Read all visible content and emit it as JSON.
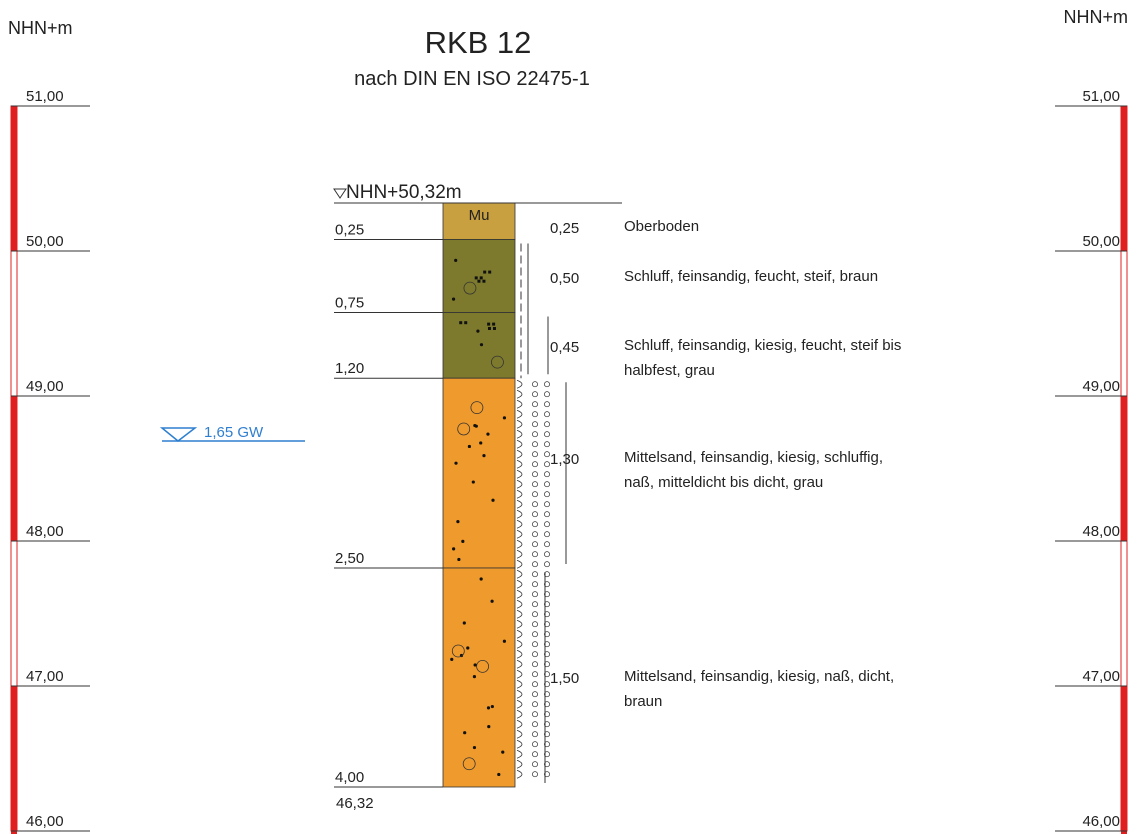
{
  "elevation_unit_left": "NHN+m",
  "elevation_unit_right": "NHN+m",
  "title": "RKB 12",
  "subtitle": "nach DIN EN ISO 22475-1",
  "top_elevation_label": "NHN+50,32m",
  "end_elevation_label": "46,32",
  "groundwater": {
    "label": "1,65 GW",
    "depth_m": 1.65,
    "color": "#2f7fd0"
  },
  "scale": {
    "ticks": [
      "51,00",
      "50,00",
      "49,00",
      "48,00",
      "47,00",
      "46,00"
    ],
    "tick_values": [
      51,
      50,
      49,
      48,
      47,
      46
    ],
    "colors": {
      "filled": "#e02020",
      "empty": "#ffffff"
    }
  },
  "colors": {
    "oberboden": "#c8a040",
    "schluff": "#7d7a2e",
    "mittelsand": "#ef9a2c",
    "line": "#333333",
    "scale_red": "#e02020"
  },
  "layers": [
    {
      "top_m": 0.0,
      "bottom_m": 0.25,
      "bottom_label": "0,25",
      "thickness": "0,25",
      "symbol": "Mu",
      "description": "Oberboden",
      "color": "#c8a040"
    },
    {
      "top_m": 0.25,
      "bottom_m": 0.75,
      "bottom_label": "0,75",
      "thickness": "0,50",
      "description": "Schluff, feinsandig, feucht, steif, braun",
      "color": "#7d7a2e"
    },
    {
      "top_m": 0.75,
      "bottom_m": 1.2,
      "bottom_label": "1,20",
      "thickness": "0,45",
      "description": "Schluff, feinsandig, kiesig, feucht, steif bis halbfest, grau",
      "color": "#7d7a2e"
    },
    {
      "top_m": 1.2,
      "bottom_m": 2.5,
      "bottom_label": "2,50",
      "thickness": "1,30",
      "description": "Mittelsand, feinsandig, kiesig, schluffig, naß, mitteldicht bis dicht, grau",
      "color": "#ef9a2c"
    },
    {
      "top_m": 2.5,
      "bottom_m": 4.0,
      "bottom_label": "4,00",
      "thickness": "1,50",
      "description": "Mittelsand, feinsandig, kiesig, naß, dicht, braun",
      "color": "#ef9a2c"
    }
  ]
}
